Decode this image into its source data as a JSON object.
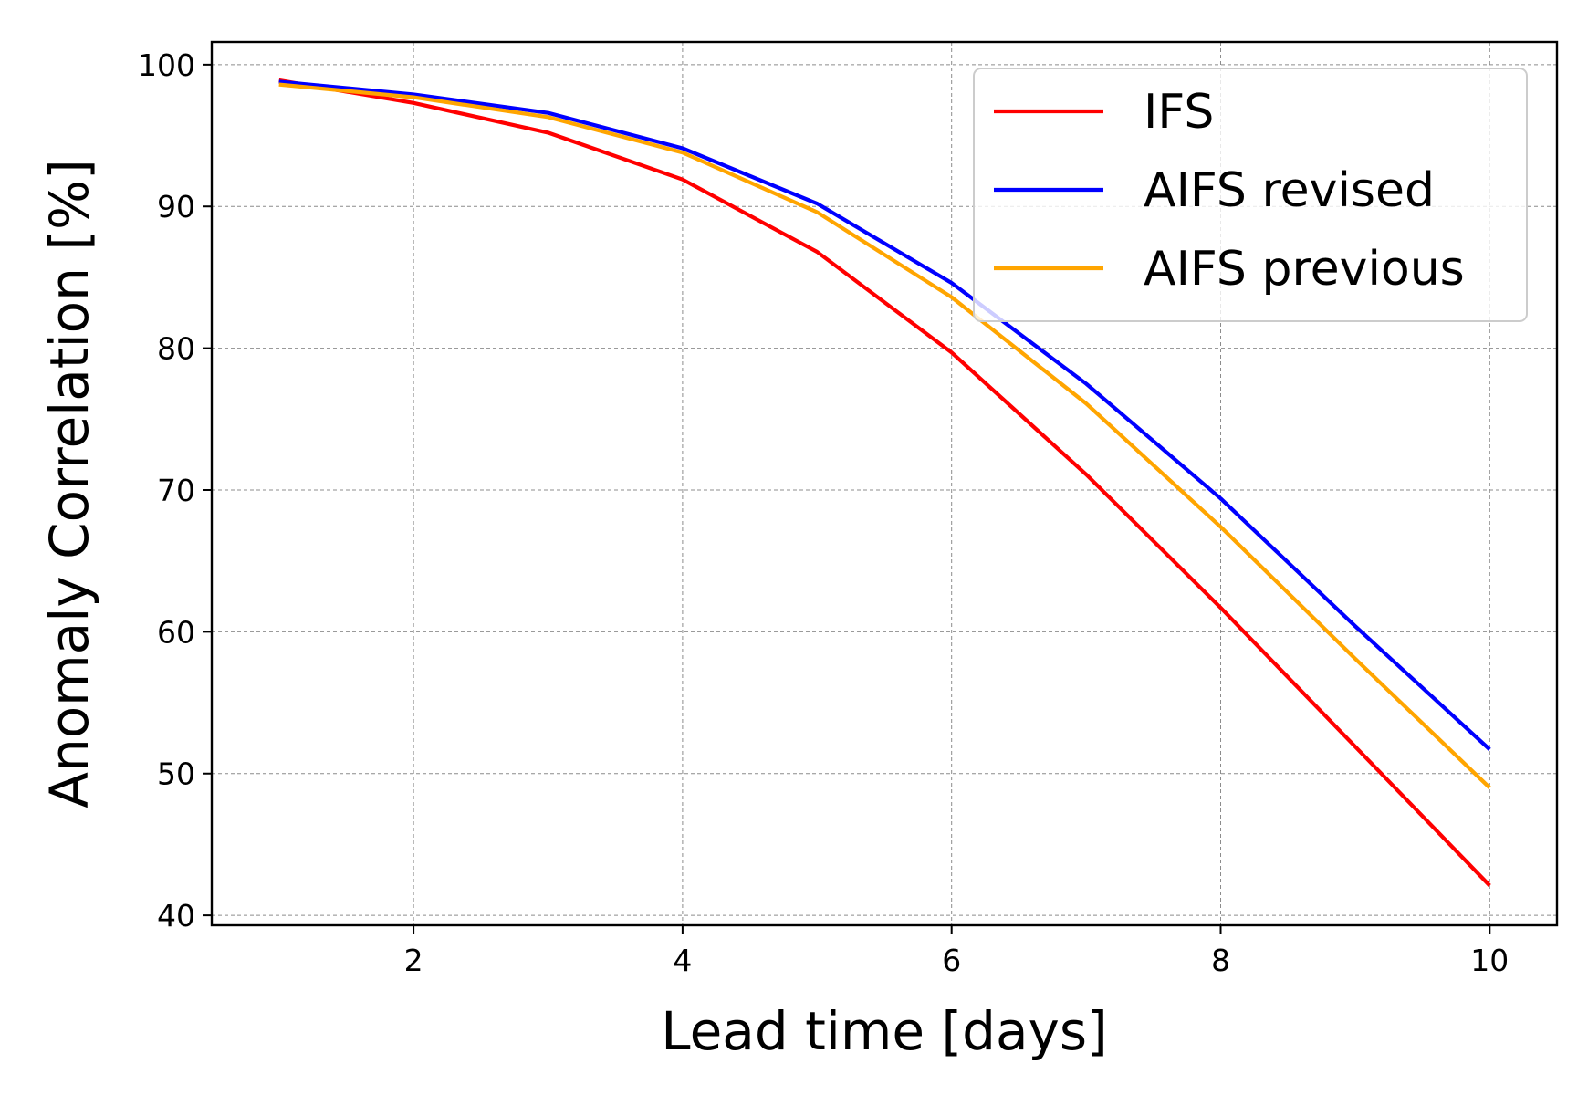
{
  "chart_data": {
    "type": "line",
    "title": "",
    "xlabel": "Lead time [days]",
    "ylabel": "Anomaly Correlation [%]",
    "xlim": [
      0.5,
      10.5
    ],
    "ylim": [
      39.3,
      101.6
    ],
    "xticks": [
      2,
      4,
      6,
      8,
      10
    ],
    "yticks": [
      40,
      50,
      60,
      70,
      80,
      90,
      100
    ],
    "grid": true,
    "legend_position": "top-right",
    "x": [
      1,
      2,
      3,
      4,
      5,
      6,
      7,
      8,
      9,
      10
    ],
    "series": [
      {
        "name": "IFS",
        "color": "#ff0000",
        "values": [
          98.9,
          97.3,
          95.2,
          91.9,
          86.8,
          79.7,
          71.1,
          61.7,
          51.9,
          42.1
        ]
      },
      {
        "name": "AIFS revised",
        "color": "#0000ff",
        "values": [
          98.8,
          97.9,
          96.6,
          94.1,
          90.2,
          84.6,
          77.5,
          69.4,
          60.4,
          51.7
        ]
      },
      {
        "name": "AIFS previous",
        "color": "#ffa500",
        "values": [
          98.6,
          97.7,
          96.3,
          93.8,
          89.6,
          83.6,
          76.1,
          67.4,
          58.1,
          49.0
        ]
      }
    ]
  }
}
